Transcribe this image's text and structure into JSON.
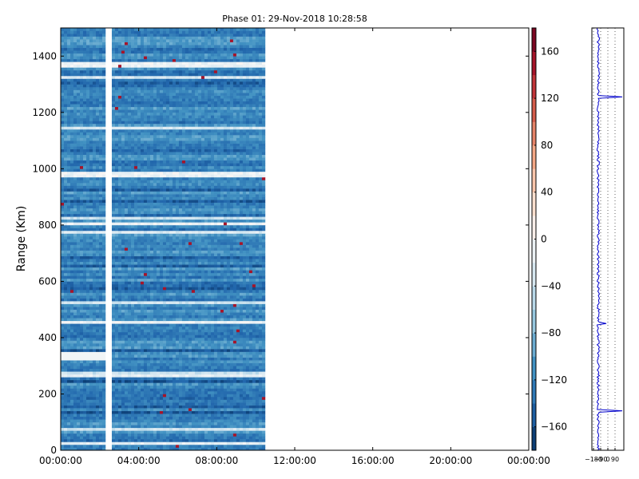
{
  "chart_data": {
    "type": "heatmap",
    "title": "Phase 01: 29-Nov-2018 10:28:58",
    "ylabel": "Range (Km)",
    "xlabel": "",
    "x_ticks": [
      "00:00:00",
      "04:00:00",
      "08:00:00",
      "12:00:00",
      "16:00:00",
      "20:00:00",
      "00:00:00"
    ],
    "x_tick_hours": [
      0,
      4,
      8,
      12,
      16,
      20,
      24
    ],
    "xlim_hours": [
      0,
      24
    ],
    "data_extent_hours": [
      0,
      10.48
    ],
    "y_ticks": [
      "0",
      "200",
      "400",
      "600",
      "800",
      "1000",
      "1200",
      "1400"
    ],
    "y_tick_values": [
      0,
      200,
      400,
      600,
      800,
      1000,
      1200,
      1400
    ],
    "ylim": [
      0,
      1500
    ],
    "gap_hours": [
      2.3,
      2.6
    ],
    "colorbar": {
      "tick_labels": [
        "160",
        "120",
        "80",
        "40",
        "0",
        "−40",
        "−80",
        "−120",
        "−160"
      ],
      "tick_values": [
        160,
        120,
        80,
        40,
        0,
        -40,
        -80,
        -120,
        -160
      ],
      "range": [
        -180,
        180
      ],
      "cmap": "RdBu_r"
    },
    "profile": {
      "x_tick_labels": [
        "−180",
        "−90",
        "0",
        "90"
      ],
      "x_tick_values": [
        -180,
        -90,
        0,
        90
      ],
      "xlim": [
        -200,
        200
      ],
      "mean_level": -120,
      "line_color": "#0000cc",
      "spikes": [
        {
          "range": 1255,
          "value": 180
        },
        {
          "range": 450,
          "value": -20
        },
        {
          "range": 140,
          "value": 180
        }
      ]
    }
  }
}
